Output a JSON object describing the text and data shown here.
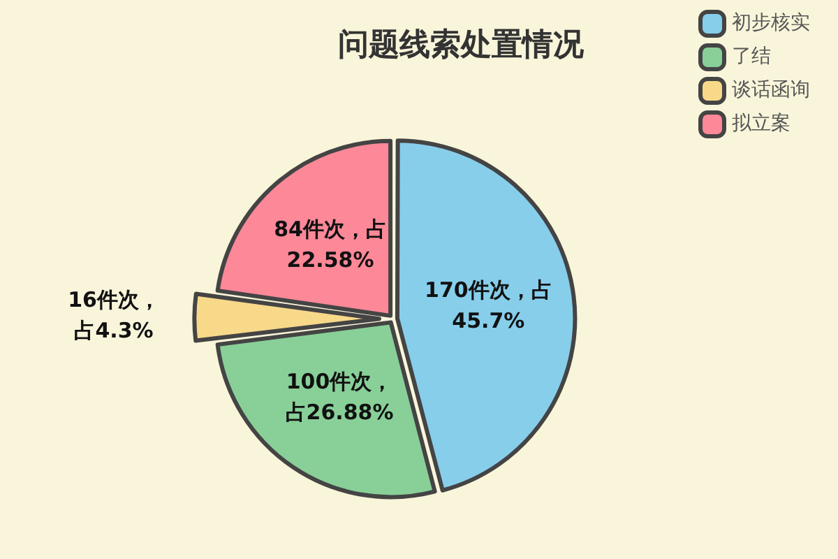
{
  "chart_data": {
    "type": "pie",
    "title": "问题线索处置情况",
    "categories": [
      "初步核实",
      "了结",
      "谈话函询",
      "拟立案"
    ],
    "values": [
      170,
      100,
      16,
      84
    ],
    "colors": [
      "#87ceeb",
      "#88d098",
      "#f8d98a",
      "#fc8898"
    ],
    "value_labels": [
      "170件次，占45.7%",
      "100件次，占26.88%",
      "16件次，占4.3%",
      "84件次，占22.58%"
    ],
    "legend": "top right"
  }
}
